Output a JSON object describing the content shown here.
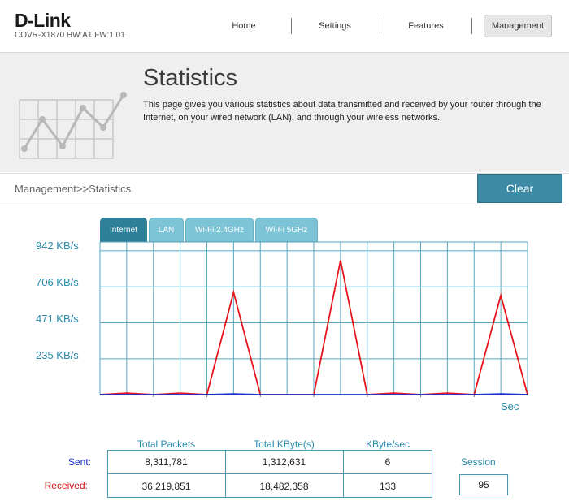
{
  "header": {
    "logo": "D-Link",
    "device_info": "COVR-X1870 HW:A1 FW:1.01",
    "nav": [
      {
        "label": "Home"
      },
      {
        "label": "Settings"
      },
      {
        "label": "Features"
      },
      {
        "label": "Management",
        "active": true
      }
    ]
  },
  "banner": {
    "title": "Statistics",
    "description": "This page gives you various statistics about data transmitted and received by your router through the Internet, on your wired network (LAN), and through your wireless networks.",
    "icon": "line-chart-icon"
  },
  "breadcrumb": "Management>>Statistics",
  "clear_label": "Clear",
  "tabs": [
    {
      "label": "Internet",
      "active": true
    },
    {
      "label": "LAN"
    },
    {
      "label": "Wi-Fi 2.4GHz"
    },
    {
      "label": "Wi-Fi 5GHz"
    }
  ],
  "chart_data": {
    "type": "line",
    "y_tick_labels": [
      "942 KB/s",
      "706 KB/s",
      "471 KB/s",
      "235 KB/s"
    ],
    "y_ticks": [
      942,
      706,
      471,
      235
    ],
    "ylim": [
      0,
      1000
    ],
    "xlabel": "Sec",
    "grid": true,
    "series": [
      {
        "color": "#e8141c",
        "values": [
          0,
          10,
          0,
          10,
          0,
          670,
          0,
          0,
          0,
          880,
          0,
          10,
          0,
          10,
          0,
          650,
          0
        ]
      },
      {
        "color": "#1a2fd0",
        "values": [
          0,
          0,
          0,
          0,
          0,
          5,
          0,
          0,
          0,
          0,
          0,
          0,
          0,
          0,
          0,
          5,
          0
        ]
      }
    ]
  },
  "stats": {
    "headers": [
      "Total Packets",
      "Total KByte(s)",
      "KByte/sec"
    ],
    "rows": [
      {
        "label": "Sent:",
        "label_color": "#1a2fd0",
        "values": [
          "8,311,781",
          "1,312,631",
          "6"
        ]
      },
      {
        "label": "Received:",
        "label_color": "#d9141c",
        "values": [
          "36,219,851",
          "18,482,358",
          "133"
        ]
      }
    ],
    "session_label": "Session",
    "session_value": "95"
  }
}
